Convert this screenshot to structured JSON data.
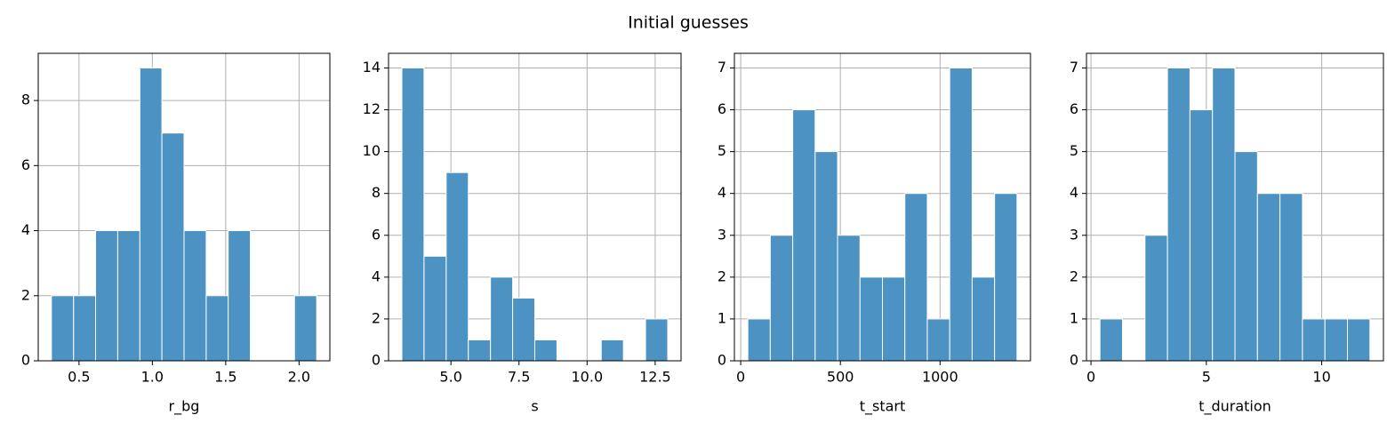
{
  "title": "Initial guesses",
  "chart_data": [
    {
      "type": "histogram",
      "xlabel": "r_bg",
      "color": "#4c92c3",
      "grid": true,
      "bins": [
        0.312,
        0.463,
        0.613,
        0.764,
        0.915,
        1.065,
        1.216,
        1.367,
        1.517,
        1.668,
        1.819,
        1.969,
        2.12
      ],
      "values": [
        2,
        2,
        4,
        4,
        9,
        7,
        4,
        2,
        4,
        0,
        0,
        2
      ],
      "xlim": [
        0.222,
        2.21
      ],
      "ylim": [
        0,
        9.45
      ],
      "xticks": [
        {
          "value": 0.5,
          "label": "0.5"
        },
        {
          "value": 1.0,
          "label": "1.0"
        },
        {
          "value": 1.5,
          "label": "1.5"
        },
        {
          "value": 2.0,
          "label": "2.0"
        }
      ],
      "yticks": [
        0,
        2,
        4,
        6,
        8
      ]
    },
    {
      "type": "histogram",
      "xlabel": "s",
      "color": "#4c92c3",
      "grid": true,
      "bins": [
        3.2,
        4.013,
        4.827,
        5.64,
        6.453,
        7.267,
        8.08,
        8.893,
        9.707,
        10.52,
        11.333,
        12.147,
        12.96
      ],
      "values": [
        14,
        5,
        9,
        1,
        4,
        3,
        1,
        0,
        0,
        1,
        0,
        2
      ],
      "xlim": [
        2.71,
        13.45
      ],
      "ylim": [
        0,
        14.7
      ],
      "xticks": [
        {
          "value": 5.0,
          "label": "5.0"
        },
        {
          "value": 7.5,
          "label": "7.5"
        },
        {
          "value": 10.0,
          "label": "10.0"
        },
        {
          "value": 12.5,
          "label": "12.5"
        }
      ],
      "yticks": [
        0,
        2,
        4,
        6,
        8,
        10,
        12,
        14
      ]
    },
    {
      "type": "histogram",
      "xlabel": "t_start",
      "color": "#4c92c3",
      "grid": true,
      "bins": [
        36,
        148.5,
        261,
        373.5,
        486,
        598.5,
        711,
        823.5,
        936,
        1048.5,
        1161,
        1273.5,
        1386
      ],
      "values": [
        1,
        3,
        6,
        5,
        3,
        2,
        2,
        4,
        1,
        7,
        2,
        4
      ],
      "xlim": [
        -31.5,
        1453.5
      ],
      "ylim": [
        0,
        7.35
      ],
      "xticks": [
        0,
        500,
        1000
      ],
      "yticks": [
        0,
        1,
        2,
        3,
        4,
        5,
        6,
        7
      ]
    },
    {
      "type": "histogram",
      "xlabel": "t_duration",
      "color": "#4c92c3",
      "grid": true,
      "bins": [
        0.39,
        1.365,
        2.34,
        3.315,
        4.29,
        5.265,
        6.24,
        7.215,
        8.19,
        9.165,
        10.14,
        11.115,
        12.09
      ],
      "values": [
        1,
        0,
        3,
        7,
        6,
        7,
        5,
        4,
        4,
        1,
        1,
        1
      ],
      "xlim": [
        -0.195,
        12.675
      ],
      "ylim": [
        0,
        7.35
      ],
      "xticks": [
        0,
        5,
        10
      ],
      "yticks": [
        0,
        1,
        2,
        3,
        4,
        5,
        6,
        7
      ]
    }
  ]
}
